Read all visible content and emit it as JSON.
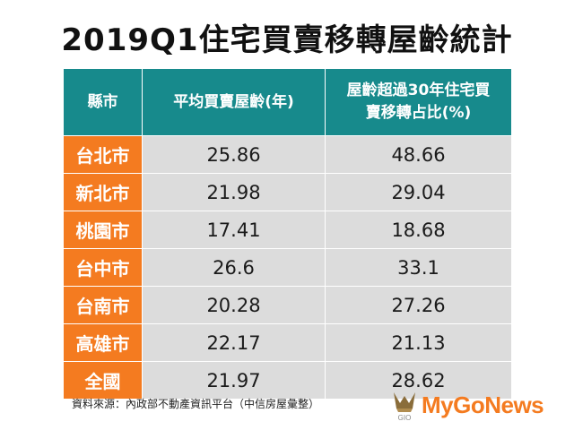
{
  "title": "2019Q1住宅買賣移轉屋齡統計",
  "table": {
    "headers": {
      "col1": "縣市",
      "col2": "平均買賣屋齡(年)",
      "col3_line1": "屋齡超過30年住宅買",
      "col3_line2": "賣移轉占比(%)"
    },
    "rows": [
      {
        "city": "台北市",
        "avg_age": "25.86",
        "over30_pct": "48.66"
      },
      {
        "city": "新北市",
        "avg_age": "21.98",
        "over30_pct": "29.04"
      },
      {
        "city": "桃園市",
        "avg_age": "17.41",
        "over30_pct": "18.68"
      },
      {
        "city": "台中市",
        "avg_age": "26.6",
        "over30_pct": "33.1"
      },
      {
        "city": "台南市",
        "avg_age": "20.28",
        "over30_pct": "27.26"
      },
      {
        "city": "高雄市",
        "avg_age": "22.17",
        "over30_pct": "21.13"
      },
      {
        "city": "全國",
        "avg_age": "21.97",
        "over30_pct": "28.62"
      }
    ]
  },
  "source": "資料來源：內政部不動產資訊平台（中信房屋彙整）",
  "logo": {
    "text": "MyGoNews",
    "mark_text": "GIO",
    "icon": "mygonews-logo-icon"
  },
  "colors": {
    "header_bg": "#178a8c",
    "city_bg": "#f47b20",
    "cell_bg": "#dcdcdc",
    "logo_orange": "#f47b20"
  }
}
